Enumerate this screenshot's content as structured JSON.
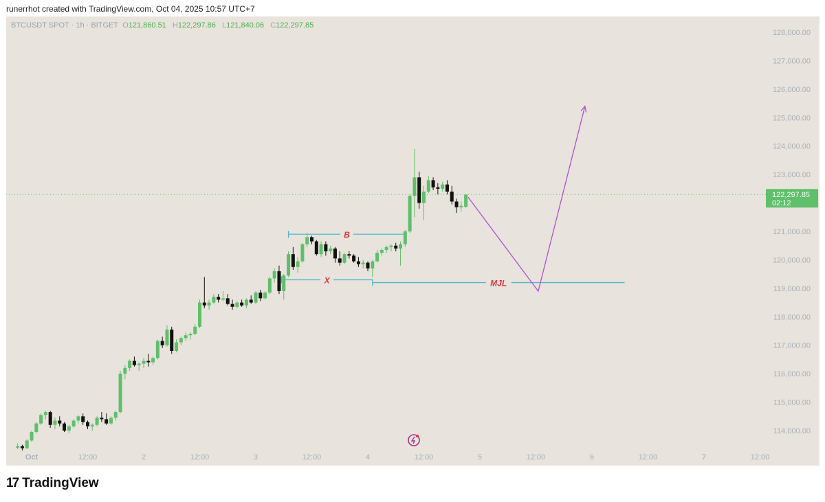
{
  "header": {
    "attribution": "runerrhot created with TradingView.com, Oct 04, 2025 10:57 UTC+7"
  },
  "symbol": {
    "label": "BTCUSDT SPOT · 1h · BITGET",
    "o_key": "O",
    "o": "121,860.51",
    "h_key": "H",
    "h": "122,297.86",
    "l_key": "L",
    "l": "121,840.06",
    "c_key": "C",
    "c": "122,297.85"
  },
  "price_tag": {
    "price": "122,297.85",
    "countdown": "02:12"
  },
  "footer": {
    "brand": "TradingView",
    "logo_glyph": "17"
  },
  "colors": {
    "up": "#5fbf6a",
    "down": "#111111",
    "background": "#e8e3dc",
    "level_line": "#4cb6c7",
    "label_text": "#e0353b",
    "projection": "#b04fd1",
    "price_line": "#6cbf76",
    "axis_text": "#a7afb7"
  },
  "chart_data": {
    "type": "candlestick",
    "y_axis": {
      "min": 113500,
      "max": 128300,
      "ticks": [
        114000,
        115000,
        116000,
        117000,
        118000,
        119000,
        120000,
        121000,
        122000,
        123000,
        124000,
        125000,
        126000,
        127000,
        128000
      ],
      "tick_labels": [
        "114,000.00",
        "115,000.00",
        "116,000.00",
        "117,000.00",
        "118,000.00",
        "119,000.00",
        "120,000.00",
        "121,000.00",
        "122,000.00",
        "123,000.00",
        "124,000.00",
        "125,000.00",
        "126,000.00",
        "127,000.00",
        "128,000.00"
      ]
    },
    "x_axis": {
      "unit": "hours since Oct 1 00:00",
      "min": -3,
      "max": 165,
      "ticks": [
        0,
        12,
        24,
        36,
        48,
        60,
        72,
        84,
        96,
        108,
        120,
        132,
        144,
        156
      ],
      "tick_labels": [
        "Oct",
        "12:00",
        "2",
        "12:00",
        "3",
        "12:00",
        "4",
        "12:00",
        "5",
        "12:00",
        "6",
        "12:00",
        "7",
        "12:00"
      ]
    },
    "candles": [
      [
        -3,
        113400,
        113550,
        113350,
        113450
      ],
      [
        -2,
        113450,
        113500,
        113300,
        113380
      ],
      [
        -1,
        113380,
        113700,
        113350,
        113650
      ],
      [
        0,
        113650,
        114000,
        113600,
        113950
      ],
      [
        1,
        113950,
        114300,
        113900,
        114250
      ],
      [
        2,
        114250,
        114600,
        114200,
        114550
      ],
      [
        3,
        114550,
        114700,
        114400,
        114650
      ],
      [
        4,
        114650,
        114700,
        114100,
        114200
      ],
      [
        5,
        114200,
        114450,
        114050,
        114350
      ],
      [
        6,
        114350,
        114500,
        114150,
        114250
      ],
      [
        7,
        114250,
        114300,
        113950,
        114000
      ],
      [
        8,
        114000,
        114200,
        113900,
        114150
      ],
      [
        9,
        114150,
        114400,
        114100,
        114350
      ],
      [
        10,
        114350,
        114550,
        114250,
        114500
      ],
      [
        11,
        114500,
        114600,
        114200,
        114300
      ],
      [
        12,
        114300,
        114350,
        114050,
        114150
      ],
      [
        13,
        114150,
        114250,
        114000,
        114200
      ],
      [
        14,
        114200,
        114500,
        114150,
        114450
      ],
      [
        15,
        114450,
        114650,
        114300,
        114400
      ],
      [
        16,
        114400,
        114600,
        114200,
        114250
      ],
      [
        17,
        114250,
        114500,
        114200,
        114450
      ],
      [
        18,
        114450,
        114700,
        114350,
        114650
      ],
      [
        19,
        114650,
        116100,
        114600,
        116000
      ],
      [
        20,
        116000,
        116300,
        115800,
        116200
      ],
      [
        21,
        116200,
        116500,
        116100,
        116450
      ],
      [
        22,
        116450,
        116600,
        116250,
        116300
      ],
      [
        23,
        116300,
        116400,
        116100,
        116350
      ],
      [
        24,
        116350,
        116550,
        116200,
        116450
      ],
      [
        25,
        116450,
        116700,
        116250,
        116400
      ],
      [
        26,
        116400,
        116600,
        116300,
        116550
      ],
      [
        27,
        116550,
        117200,
        116500,
        117150
      ],
      [
        28,
        117150,
        117300,
        116900,
        117000
      ],
      [
        29,
        117000,
        117700,
        116950,
        117550
      ],
      [
        30,
        117550,
        117650,
        116700,
        116800
      ],
      [
        31,
        116800,
        117200,
        116750,
        117100
      ],
      [
        32,
        117100,
        117300,
        117000,
        117250
      ],
      [
        33,
        117250,
        117450,
        117150,
        117350
      ],
      [
        34,
        117350,
        117450,
        117200,
        117400
      ],
      [
        35,
        117400,
        117750,
        117350,
        117650
      ],
      [
        36,
        117650,
        118600,
        117600,
        118500
      ],
      [
        37,
        118500,
        119400,
        118300,
        118400
      ],
      [
        38,
        118400,
        118600,
        118250,
        118500
      ],
      [
        39,
        118500,
        118800,
        118450,
        118700
      ],
      [
        40,
        118700,
        118800,
        118500,
        118600
      ],
      [
        41,
        118600,
        118900,
        118550,
        118650
      ],
      [
        42,
        118650,
        118800,
        118400,
        118450
      ],
      [
        43,
        118450,
        118600,
        118250,
        118350
      ],
      [
        44,
        118350,
        118550,
        118300,
        118500
      ],
      [
        45,
        118500,
        118600,
        118350,
        118400
      ],
      [
        46,
        118400,
        118650,
        118300,
        118600
      ],
      [
        47,
        118600,
        118750,
        118450,
        118500
      ],
      [
        48,
        118500,
        118900,
        118450,
        118850
      ],
      [
        49,
        118850,
        118950,
        118550,
        118650
      ],
      [
        50,
        118650,
        118900,
        118600,
        118850
      ],
      [
        51,
        118850,
        119400,
        118800,
        119350
      ],
      [
        52,
        119350,
        119700,
        119200,
        119600
      ],
      [
        53,
        119600,
        119800,
        118800,
        118900
      ],
      [
        54,
        118900,
        119500,
        118600,
        119450
      ],
      [
        55,
        119450,
        120300,
        119400,
        120200
      ],
      [
        56,
        120200,
        120450,
        119650,
        119750
      ],
      [
        57,
        119750,
        120100,
        119550,
        119950
      ],
      [
        58,
        119950,
        120600,
        119900,
        120550
      ],
      [
        59,
        120550,
        120950,
        120450,
        120800
      ],
      [
        60,
        120800,
        120850,
        120550,
        120650
      ],
      [
        61,
        120650,
        120700,
        120150,
        120200
      ],
      [
        62,
        120200,
        120650,
        120100,
        120550
      ],
      [
        63,
        120550,
        120650,
        120150,
        120300
      ],
      [
        64,
        120300,
        120500,
        120200,
        120400
      ],
      [
        65,
        120400,
        120450,
        119900,
        120050
      ],
      [
        66,
        120050,
        120300,
        119800,
        119900
      ],
      [
        67,
        119900,
        120250,
        119850,
        120200
      ],
      [
        68,
        120200,
        120300,
        120050,
        120150
      ],
      [
        69,
        120150,
        120200,
        119900,
        119950
      ],
      [
        70,
        119950,
        120100,
        119750,
        119850
      ],
      [
        71,
        119850,
        120000,
        119700,
        119900
      ],
      [
        72,
        119900,
        119950,
        119600,
        119700
      ],
      [
        73,
        119700,
        120000,
        119400,
        119950
      ],
      [
        74,
        119950,
        120350,
        119900,
        120250
      ],
      [
        75,
        120250,
        120400,
        120150,
        120350
      ],
      [
        76,
        120350,
        120500,
        120250,
        120450
      ],
      [
        77,
        120450,
        120550,
        120300,
        120500
      ],
      [
        78,
        120500,
        120600,
        120300,
        120400
      ],
      [
        79,
        120400,
        120650,
        119800,
        120550
      ],
      [
        80,
        120550,
        121050,
        120450,
        121000
      ],
      [
        81,
        121000,
        122300,
        120950,
        122250
      ],
      [
        82,
        122250,
        123900,
        121500,
        122900
      ],
      [
        83,
        122900,
        123100,
        121800,
        122000
      ],
      [
        84,
        122000,
        122600,
        121400,
        122400
      ],
      [
        85,
        122400,
        122950,
        122350,
        122800
      ],
      [
        86,
        122800,
        122900,
        122450,
        122550
      ],
      [
        87,
        122550,
        122700,
        122300,
        122500
      ],
      [
        88,
        122500,
        122750,
        122400,
        122650
      ],
      [
        89,
        122650,
        122800,
        122300,
        122400
      ],
      [
        90,
        122400,
        122600,
        121950,
        122050
      ],
      [
        91,
        122050,
        122150,
        121650,
        121850
      ],
      [
        92,
        121850,
        122050,
        121700,
        121900
      ],
      [
        93,
        121860.51,
        122297.86,
        121840.06,
        122297.85
      ]
    ],
    "current_price": 122297.85,
    "annotations": [
      {
        "label": "B",
        "level": 120900,
        "x_start": 55,
        "x_end": 80
      },
      {
        "label": "X",
        "level": 119300,
        "x_start": 53.5,
        "x_end": 73
      },
      {
        "label": "MJL",
        "level": 119200,
        "x_start": 73,
        "x_end": 127
      }
    ],
    "projection": [
      [
        93.5,
        122200
      ],
      [
        108.5,
        118900
      ],
      [
        118.5,
        125400
      ]
    ]
  }
}
